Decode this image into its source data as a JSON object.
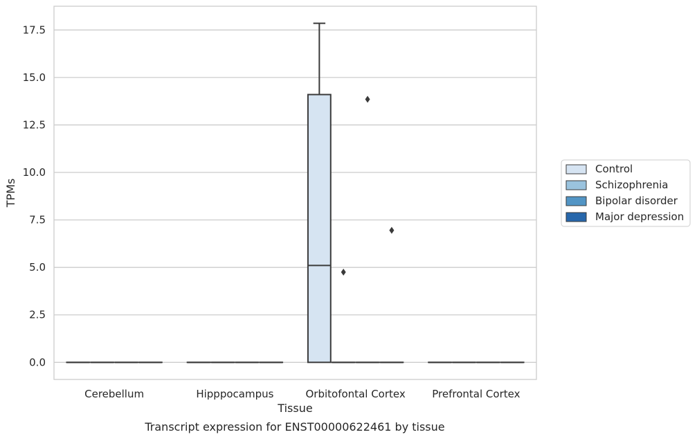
{
  "chart_data": {
    "type": "box",
    "caption": "Transcript expression for ENST00000622461 by tissue",
    "xlabel": "Tissue",
    "ylabel": "TPMs",
    "categories": [
      "Cerebellum",
      "Hipppocampus",
      "Orbitofontal Cortex",
      "Prefrontal Cortex"
    ],
    "ylim": [
      -0.9,
      18.75
    ],
    "yticks": [
      0.0,
      2.5,
      5.0,
      7.5,
      10.0,
      12.5,
      15.0,
      17.5
    ],
    "ytick_labels": [
      "0.0",
      "2.5",
      "5.0",
      "7.5",
      "10.0",
      "12.5",
      "15.0",
      "17.5"
    ],
    "grid": "horizontal",
    "legend_placement": "right",
    "series": [
      {
        "name": "Control",
        "color": "#d6e4f2"
      },
      {
        "name": "Schizophrenia",
        "color": "#9ac3de"
      },
      {
        "name": "Bipolar disorder",
        "color": "#5295c5"
      },
      {
        "name": "Major depression",
        "color": "#2767ab"
      }
    ],
    "boxes": [
      {
        "category": "Cerebellum",
        "series": "Control",
        "q1": 0,
        "median": 0,
        "q3": 0,
        "whisker_low": 0,
        "whisker_high": 0,
        "outliers": []
      },
      {
        "category": "Cerebellum",
        "series": "Schizophrenia",
        "q1": 0,
        "median": 0,
        "q3": 0,
        "whisker_low": 0,
        "whisker_high": 0,
        "outliers": []
      },
      {
        "category": "Cerebellum",
        "series": "Bipolar disorder",
        "q1": 0,
        "median": 0,
        "q3": 0,
        "whisker_low": 0,
        "whisker_high": 0,
        "outliers": []
      },
      {
        "category": "Cerebellum",
        "series": "Major depression",
        "q1": 0,
        "median": 0,
        "q3": 0,
        "whisker_low": 0,
        "whisker_high": 0,
        "outliers": []
      },
      {
        "category": "Hipppocampus",
        "series": "Control",
        "q1": 0,
        "median": 0,
        "q3": 0,
        "whisker_low": 0,
        "whisker_high": 0,
        "outliers": []
      },
      {
        "category": "Hipppocampus",
        "series": "Schizophrenia",
        "q1": 0,
        "median": 0,
        "q3": 0,
        "whisker_low": 0,
        "whisker_high": 0,
        "outliers": []
      },
      {
        "category": "Hipppocampus",
        "series": "Bipolar disorder",
        "q1": 0,
        "median": 0,
        "q3": 0,
        "whisker_low": 0,
        "whisker_high": 0,
        "outliers": []
      },
      {
        "category": "Hipppocampus",
        "series": "Major depression",
        "q1": 0,
        "median": 0,
        "q3": 0,
        "whisker_low": 0,
        "whisker_high": 0,
        "outliers": []
      },
      {
        "category": "Orbitofontal Cortex",
        "series": "Control",
        "q1": 0,
        "median": 5.1,
        "q3": 14.1,
        "whisker_low": 0,
        "whisker_high": 17.85,
        "outliers": []
      },
      {
        "category": "Orbitofontal Cortex",
        "series": "Schizophrenia",
        "q1": 0,
        "median": 0,
        "q3": 0,
        "whisker_low": 0,
        "whisker_high": 0,
        "outliers": [
          4.75
        ]
      },
      {
        "category": "Orbitofontal Cortex",
        "series": "Bipolar disorder",
        "q1": 0,
        "median": 0,
        "q3": 0,
        "whisker_low": 0,
        "whisker_high": 0,
        "outliers": [
          13.85
        ]
      },
      {
        "category": "Orbitofontal Cortex",
        "series": "Major depression",
        "q1": 0,
        "median": 0,
        "q3": 0,
        "whisker_low": 0,
        "whisker_high": 0,
        "outliers": [
          6.95
        ]
      },
      {
        "category": "Prefrontal Cortex",
        "series": "Control",
        "q1": 0,
        "median": 0,
        "q3": 0,
        "whisker_low": 0,
        "whisker_high": 0,
        "outliers": []
      },
      {
        "category": "Prefrontal Cortex",
        "series": "Schizophrenia",
        "q1": 0,
        "median": 0,
        "q3": 0,
        "whisker_low": 0,
        "whisker_high": 0,
        "outliers": []
      },
      {
        "category": "Prefrontal Cortex",
        "series": "Bipolar disorder",
        "q1": 0,
        "median": 0,
        "q3": 0,
        "whisker_low": 0,
        "whisker_high": 0,
        "outliers": []
      },
      {
        "category": "Prefrontal Cortex",
        "series": "Major depression",
        "q1": 0,
        "median": 0,
        "q3": 0,
        "whisker_low": 0,
        "whisker_high": 0,
        "outliers": []
      }
    ]
  }
}
